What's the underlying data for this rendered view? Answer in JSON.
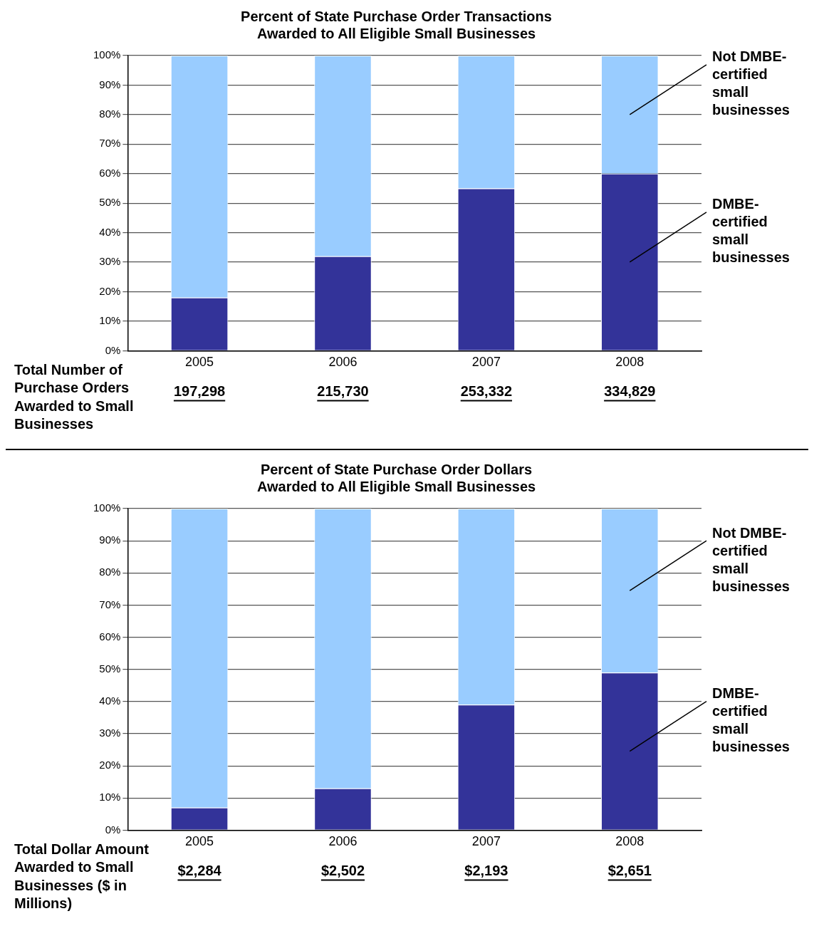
{
  "chart_data": [
    {
      "type": "bar",
      "title": "Percent of State Purchase Order Transactions\nAwarded to All Eligible Small Businesses",
      "categories": [
        "2005",
        "2006",
        "2007",
        "2008"
      ],
      "stacked": true,
      "series": [
        {
          "name": "DMBE-certified small businesses",
          "color": "#333399",
          "values": [
            18,
            32,
            55,
            60
          ]
        },
        {
          "name": "Not DMBE-certified small businesses",
          "color": "#99ccff",
          "values": [
            82,
            68,
            45,
            40
          ]
        }
      ],
      "ylim": [
        0,
        100
      ],
      "yticks": [
        {
          "value": 0,
          "label": "0%"
        },
        {
          "value": 10,
          "label": "10%"
        },
        {
          "value": 20,
          "label": "20%"
        },
        {
          "value": 30,
          "label": "30%"
        },
        {
          "value": 40,
          "label": "40%"
        },
        {
          "value": 50,
          "label": "50%"
        },
        {
          "value": 60,
          "label": "60%"
        },
        {
          "value": 70,
          "label": "70%"
        },
        {
          "value": 80,
          "label": "80%"
        },
        {
          "value": 90,
          "label": "90%"
        },
        {
          "value": 100,
          "label": "100%"
        }
      ],
      "grid": "y",
      "legend": false,
      "annotations": [
        "Total Number of Purchase Orders Awarded to Small Businesses",
        "197,298",
        "215,730",
        "253,332",
        "334,829"
      ]
    },
    {
      "type": "bar",
      "title": "Percent of State Purchase Order Dollars\nAwarded to All Eligible Small Businesses",
      "categories": [
        "2005",
        "2006",
        "2007",
        "2008"
      ],
      "stacked": true,
      "series": [
        {
          "name": "DMBE-certified small businesses",
          "color": "#333399",
          "values": [
            7,
            13,
            39,
            49
          ]
        },
        {
          "name": "Not DMBE-certified small businesses",
          "color": "#99ccff",
          "values": [
            93,
            87,
            61,
            51
          ]
        }
      ],
      "ylim": [
        0,
        100
      ],
      "yticks": [
        {
          "value": 0,
          "label": "0%"
        },
        {
          "value": 10,
          "label": "10%"
        },
        {
          "value": 20,
          "label": "20%"
        },
        {
          "value": 30,
          "label": "30%"
        },
        {
          "value": 40,
          "label": "40%"
        },
        {
          "value": 50,
          "label": "50%"
        },
        {
          "value": 60,
          "label": "60%"
        },
        {
          "value": 70,
          "label": "70%"
        },
        {
          "value": 80,
          "label": "80%"
        },
        {
          "value": 90,
          "label": "90%"
        },
        {
          "value": 100,
          "label": "100%"
        }
      ],
      "grid": "y",
      "legend": false,
      "annotations": [
        "Total Dollar Amount Awarded to Small Businesses ($ in Millions)",
        "$2,284",
        "$2,502",
        "$2,193",
        "$2,651"
      ]
    }
  ]
}
